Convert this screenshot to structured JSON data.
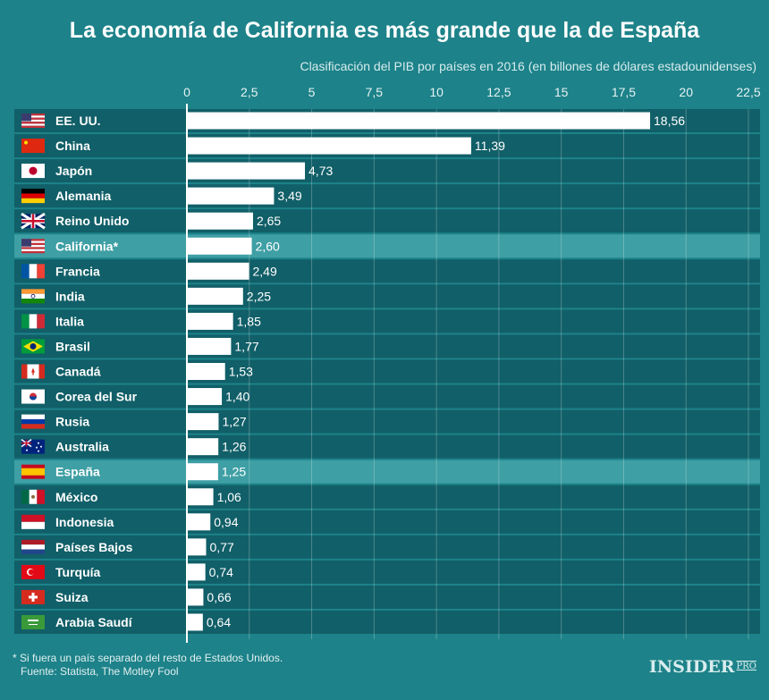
{
  "chart_data": {
    "type": "bar",
    "orientation": "horizontal",
    "title": "La economía de California es más grande que la de España",
    "subtitle": "Clasificación del PIB por países en 2016 (en billones de dólares estadounidenses)",
    "categories": [
      "EE. UU.",
      "China",
      "Japón",
      "Alemania",
      "Reino Unido",
      "California*",
      "Francia",
      "India",
      "Italia",
      "Brasil",
      "Canadá",
      "Corea del Sur",
      "Rusia",
      "Australia",
      "España",
      "México",
      "Indonesia",
      "Países Bajos",
      "Turquía",
      "Suiza",
      "Arabia Saudí"
    ],
    "values": [
      18.56,
      11.39,
      4.73,
      3.49,
      2.65,
      2.6,
      2.49,
      2.25,
      1.85,
      1.77,
      1.53,
      1.4,
      1.27,
      1.26,
      1.25,
      1.06,
      0.94,
      0.77,
      0.74,
      0.66,
      0.64
    ],
    "data_labels": [
      "18,56",
      "11,39",
      "4,73",
      "3,49",
      "2,65",
      "2,60",
      "2,49",
      "2,25",
      "1,85",
      "1,77",
      "1,53",
      "1,40",
      "1,27",
      "1,26",
      "1,25",
      "1,06",
      "0,94",
      "0,77",
      "0,74",
      "0,66",
      "0,64"
    ],
    "highlighted": [
      "California*",
      "España"
    ],
    "flags": [
      "us-flag-icon",
      "china-flag-icon",
      "japan-flag-icon",
      "germany-flag-icon",
      "uk-flag-icon",
      "us-flag-icon",
      "france-flag-icon",
      "india-flag-icon",
      "italy-flag-icon",
      "brazil-flag-icon",
      "canada-flag-icon",
      "south-korea-flag-icon",
      "russia-flag-icon",
      "australia-flag-icon",
      "spain-flag-icon",
      "mexico-flag-icon",
      "indonesia-flag-icon",
      "netherlands-flag-icon",
      "turkey-flag-icon",
      "switzerland-flag-icon",
      "saudi-arabia-flag-icon"
    ],
    "xlim": [
      0,
      22.5
    ],
    "xticks": [
      "0",
      "2,5",
      "5",
      "7,5",
      "10",
      "12,5",
      "15",
      "17,5",
      "20",
      "22,5"
    ],
    "xtick_values": [
      0,
      2.5,
      5,
      7.5,
      10,
      12.5,
      15,
      17.5,
      20,
      22.5
    ],
    "grid": true,
    "colors": {
      "background": "#1d8289",
      "row": "#115f68",
      "highlight_row": "#3e9fa4",
      "bar": "#ffffff"
    }
  },
  "footnote": "* Si fuera un país separado del resto de Estados Unidos.",
  "source": "Fuente: Statista, The Motley Fool",
  "logo": {
    "main": "INSIDER",
    "sup": "PRO"
  }
}
